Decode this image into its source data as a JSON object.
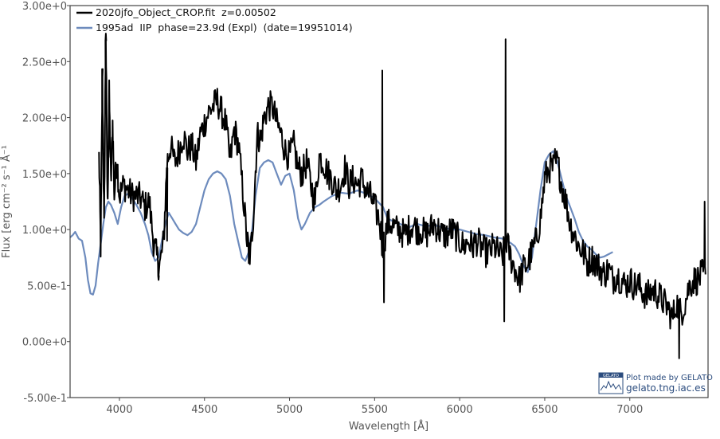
{
  "chart_data": {
    "type": "line",
    "xlabel": "Wavelength [Å]",
    "ylabel": "Flux [erg cm⁻² s⁻¹ Å⁻¹",
    "xlim": [
      3710,
      7460
    ],
    "ylim": [
      -0.5,
      3.0
    ],
    "x_ticks": [
      4000,
      4500,
      5000,
      5500,
      6000,
      6500,
      7000
    ],
    "x_tick_labels": [
      "4000",
      "4500",
      "5000",
      "5500",
      "6000",
      "6500",
      "7000"
    ],
    "y_ticks": [
      -0.5,
      0.0,
      0.5,
      1.0,
      1.5,
      2.0,
      2.5,
      3.0
    ],
    "y_tick_labels": [
      "-5.00e-1",
      "0.00e+0",
      "5.00e-1",
      "1.00e+0",
      "1.50e+0",
      "2.00e+0",
      "2.50e+0",
      "3.00e+0"
    ],
    "grid": false,
    "legend_position": "top-left",
    "series": [
      {
        "name": "2020jfo_Object_CROP.fit  z=0.00502",
        "color": "#000000",
        "noisy": true,
        "points": [
          [
            3880,
            1.65
          ],
          [
            3890,
            0.85
          ],
          [
            3900,
            2.35
          ],
          [
            3910,
            1.0
          ],
          [
            3920,
            2.75
          ],
          [
            3930,
            1.2
          ],
          [
            3940,
            2.2
          ],
          [
            3950,
            1.4
          ],
          [
            3960,
            1.95
          ],
          [
            3970,
            1.3
          ],
          [
            3985,
            1.65
          ],
          [
            4000,
            1.3
          ],
          [
            4025,
            1.4
          ],
          [
            4050,
            1.35
          ],
          [
            4075,
            1.3
          ],
          [
            4100,
            1.3
          ],
          [
            4125,
            1.28
          ],
          [
            4150,
            1.2
          ],
          [
            4175,
            1.25
          ],
          [
            4200,
            0.9
          ],
          [
            4220,
            0.75
          ],
          [
            4240,
            0.7
          ],
          [
            4260,
            0.9
          ],
          [
            4280,
            1.6
          ],
          [
            4300,
            1.75
          ],
          [
            4325,
            1.6
          ],
          [
            4350,
            1.7
          ],
          [
            4375,
            1.85
          ],
          [
            4400,
            1.7
          ],
          [
            4425,
            1.75
          ],
          [
            4450,
            1.6
          ],
          [
            4475,
            1.85
          ],
          [
            4500,
            1.95
          ],
          [
            4525,
            2.05
          ],
          [
            4550,
            2.1
          ],
          [
            4575,
            2.15
          ],
          [
            4600,
            2.05
          ],
          [
            4625,
            1.95
          ],
          [
            4650,
            1.6
          ],
          [
            4675,
            1.9
          ],
          [
            4700,
            1.75
          ],
          [
            4725,
            1.35
          ],
          [
            4750,
            0.9
          ],
          [
            4770,
            0.75
          ],
          [
            4790,
            1.2
          ],
          [
            4810,
            1.85
          ],
          [
            4830,
            1.8
          ],
          [
            4850,
            2.0
          ],
          [
            4875,
            2.1
          ],
          [
            4900,
            2.1
          ],
          [
            4925,
            1.95
          ],
          [
            4950,
            1.85
          ],
          [
            4975,
            1.7
          ],
          [
            5000,
            1.65
          ],
          [
            5025,
            1.75
          ],
          [
            5050,
            1.55
          ],
          [
            5075,
            1.5
          ],
          [
            5100,
            1.6
          ],
          [
            5125,
            1.4
          ],
          [
            5150,
            1.25
          ],
          [
            5175,
            1.65
          ],
          [
            5200,
            1.6
          ],
          [
            5225,
            1.5
          ],
          [
            5250,
            1.45
          ],
          [
            5275,
            1.35
          ],
          [
            5300,
            1.4
          ],
          [
            5325,
            1.55
          ],
          [
            5350,
            1.4
          ],
          [
            5375,
            1.45
          ],
          [
            5400,
            1.4
          ],
          [
            5425,
            1.45
          ],
          [
            5450,
            1.35
          ],
          [
            5475,
            1.3
          ],
          [
            5500,
            1.2
          ],
          [
            5525,
            1.1
          ],
          [
            5550,
            0.85
          ],
          [
            5575,
            1.05
          ],
          [
            5600,
            1.05
          ],
          [
            5625,
            1.0
          ],
          [
            5650,
            1.0
          ],
          [
            5675,
            0.95
          ],
          [
            5700,
            1.0
          ],
          [
            5725,
            1.05
          ],
          [
            5750,
            1.0
          ],
          [
            5775,
            1.0
          ],
          [
            5800,
            0.95
          ],
          [
            5825,
            1.0
          ],
          [
            5850,
            1.05
          ],
          [
            5875,
            1.0
          ],
          [
            5900,
            0.95
          ],
          [
            5925,
            0.95
          ],
          [
            5950,
            1.0
          ],
          [
            5975,
            0.95
          ],
          [
            6000,
            0.9
          ],
          [
            6025,
            0.85
          ],
          [
            6050,
            0.9
          ],
          [
            6075,
            0.85
          ],
          [
            6100,
            0.9
          ],
          [
            6125,
            0.85
          ],
          [
            6150,
            0.8
          ],
          [
            6175,
            0.8
          ],
          [
            6200,
            0.85
          ],
          [
            6225,
            0.8
          ],
          [
            6250,
            0.75
          ],
          [
            6275,
            0.9
          ],
          [
            6300,
            0.75
          ],
          [
            6325,
            0.65
          ],
          [
            6350,
            0.55
          ],
          [
            6375,
            0.65
          ],
          [
            6400,
            0.7
          ],
          [
            6425,
            0.8
          ],
          [
            6450,
            0.9
          ],
          [
            6475,
            1.1
          ],
          [
            6500,
            1.45
          ],
          [
            6525,
            1.55
          ],
          [
            6550,
            1.55
          ],
          [
            6575,
            1.6
          ],
          [
            6600,
            1.4
          ],
          [
            6625,
            1.25
          ],
          [
            6650,
            1.05
          ],
          [
            6675,
            0.95
          ],
          [
            6700,
            0.85
          ],
          [
            6725,
            0.8
          ],
          [
            6750,
            0.7
          ],
          [
            6775,
            0.75
          ],
          [
            6800,
            0.7
          ],
          [
            6825,
            0.65
          ],
          [
            6850,
            0.6
          ],
          [
            6875,
            0.65
          ],
          [
            6900,
            0.55
          ],
          [
            6925,
            0.6
          ],
          [
            6950,
            0.55
          ],
          [
            6975,
            0.5
          ],
          [
            7000,
            0.55
          ],
          [
            7025,
            0.5
          ],
          [
            7050,
            0.5
          ],
          [
            7075,
            0.45
          ],
          [
            7100,
            0.4
          ],
          [
            7125,
            0.45
          ],
          [
            7150,
            0.45
          ],
          [
            7175,
            0.4
          ],
          [
            7200,
            0.35
          ],
          [
            7225,
            0.3
          ],
          [
            7250,
            0.2
          ],
          [
            7275,
            0.35
          ],
          [
            7300,
            0.25
          ],
          [
            7325,
            0.35
          ],
          [
            7350,
            0.5
          ],
          [
            7375,
            0.55
          ],
          [
            7400,
            0.55
          ],
          [
            7425,
            0.6
          ],
          [
            7445,
            0.6
          ]
        ],
        "spikes": [
          [
            3900,
            2.35
          ],
          [
            3920,
            2.75
          ],
          [
            4230,
            0.55
          ],
          [
            4280,
            0.9
          ],
          [
            4760,
            0.7
          ],
          [
            5545,
            2.42
          ],
          [
            5555,
            0.35
          ],
          [
            6270,
            2.7
          ],
          [
            6262,
            0.18
          ],
          [
            6560,
            1.72
          ],
          [
            7290,
            -0.15
          ],
          [
            7440,
            1.25
          ]
        ]
      },
      {
        "name": "1995ad  IIP  phase=23.9d (Expl)  (date=19951014)",
        "color": "#6d8bbd",
        "noisy": false,
        "points": [
          [
            3710,
            0.93
          ],
          [
            3725,
            0.95
          ],
          [
            3740,
            0.98
          ],
          [
            3760,
            0.92
          ],
          [
            3780,
            0.9
          ],
          [
            3800,
            0.75
          ],
          [
            3815,
            0.55
          ],
          [
            3830,
            0.43
          ],
          [
            3845,
            0.42
          ],
          [
            3860,
            0.5
          ],
          [
            3875,
            0.7
          ],
          [
            3890,
            0.87
          ],
          [
            3905,
            1.05
          ],
          [
            3920,
            1.2
          ],
          [
            3935,
            1.25
          ],
          [
            3950,
            1.22
          ],
          [
            3970,
            1.15
          ],
          [
            3990,
            1.05
          ],
          [
            4010,
            1.2
          ],
          [
            4030,
            1.3
          ],
          [
            4050,
            1.32
          ],
          [
            4075,
            1.28
          ],
          [
            4100,
            1.22
          ],
          [
            4125,
            1.15
          ],
          [
            4150,
            1.05
          ],
          [
            4170,
            0.95
          ],
          [
            4190,
            0.8
          ],
          [
            4210,
            0.72
          ],
          [
            4230,
            0.75
          ],
          [
            4250,
            0.9
          ],
          [
            4270,
            1.05
          ],
          [
            4290,
            1.15
          ],
          [
            4310,
            1.1
          ],
          [
            4330,
            1.05
          ],
          [
            4350,
            1.0
          ],
          [
            4375,
            0.97
          ],
          [
            4400,
            0.95
          ],
          [
            4425,
            0.98
          ],
          [
            4450,
            1.05
          ],
          [
            4475,
            1.2
          ],
          [
            4500,
            1.35
          ],
          [
            4525,
            1.45
          ],
          [
            4550,
            1.5
          ],
          [
            4575,
            1.52
          ],
          [
            4600,
            1.5
          ],
          [
            4625,
            1.45
          ],
          [
            4650,
            1.3
          ],
          [
            4675,
            1.05
          ],
          [
            4700,
            0.88
          ],
          [
            4720,
            0.75
          ],
          [
            4740,
            0.72
          ],
          [
            4760,
            0.8
          ],
          [
            4780,
            1.0
          ],
          [
            4800,
            1.3
          ],
          [
            4825,
            1.55
          ],
          [
            4850,
            1.6
          ],
          [
            4875,
            1.62
          ],
          [
            4900,
            1.6
          ],
          [
            4925,
            1.5
          ],
          [
            4950,
            1.4
          ],
          [
            4975,
            1.48
          ],
          [
            5000,
            1.5
          ],
          [
            5025,
            1.35
          ],
          [
            5050,
            1.1
          ],
          [
            5070,
            1.0
          ],
          [
            5090,
            1.05
          ],
          [
            5120,
            1.15
          ],
          [
            5150,
            1.2
          ],
          [
            5175,
            1.22
          ],
          [
            5200,
            1.25
          ],
          [
            5250,
            1.3
          ],
          [
            5300,
            1.33
          ],
          [
            5350,
            1.32
          ],
          [
            5400,
            1.35
          ],
          [
            5450,
            1.32
          ],
          [
            5500,
            1.28
          ],
          [
            5550,
            1.2
          ],
          [
            5575,
            1.1
          ],
          [
            5600,
            1.08
          ],
          [
            5650,
            1.05
          ],
          [
            5700,
            1.02
          ],
          [
            5750,
            1.05
          ],
          [
            5800,
            1.03
          ],
          [
            5850,
            1.04
          ],
          [
            5900,
            1.02
          ],
          [
            5950,
            1.0
          ],
          [
            6000,
            1.0
          ],
          [
            6050,
            0.98
          ],
          [
            6100,
            0.96
          ],
          [
            6150,
            0.95
          ],
          [
            6200,
            0.93
          ],
          [
            6250,
            0.92
          ],
          [
            6300,
            0.88
          ],
          [
            6325,
            0.85
          ],
          [
            6350,
            0.78
          ],
          [
            6375,
            0.68
          ],
          [
            6400,
            0.62
          ],
          [
            6425,
            0.75
          ],
          [
            6450,
            1.05
          ],
          [
            6475,
            1.35
          ],
          [
            6500,
            1.6
          ],
          [
            6525,
            1.67
          ],
          [
            6550,
            1.7
          ],
          [
            6575,
            1.6
          ],
          [
            6600,
            1.45
          ],
          [
            6625,
            1.3
          ],
          [
            6650,
            1.2
          ],
          [
            6675,
            1.1
          ],
          [
            6700,
            0.98
          ],
          [
            6725,
            0.9
          ],
          [
            6750,
            0.85
          ],
          [
            6775,
            0.82
          ],
          [
            6800,
            0.78
          ],
          [
            6825,
            0.75
          ],
          [
            6850,
            0.76
          ],
          [
            6875,
            0.78
          ],
          [
            6900,
            0.8
          ]
        ]
      }
    ]
  },
  "credit": {
    "badge": "GELATO",
    "line1": "Plot made by GELATO",
    "line2": "gelato.tng.iac.es"
  }
}
